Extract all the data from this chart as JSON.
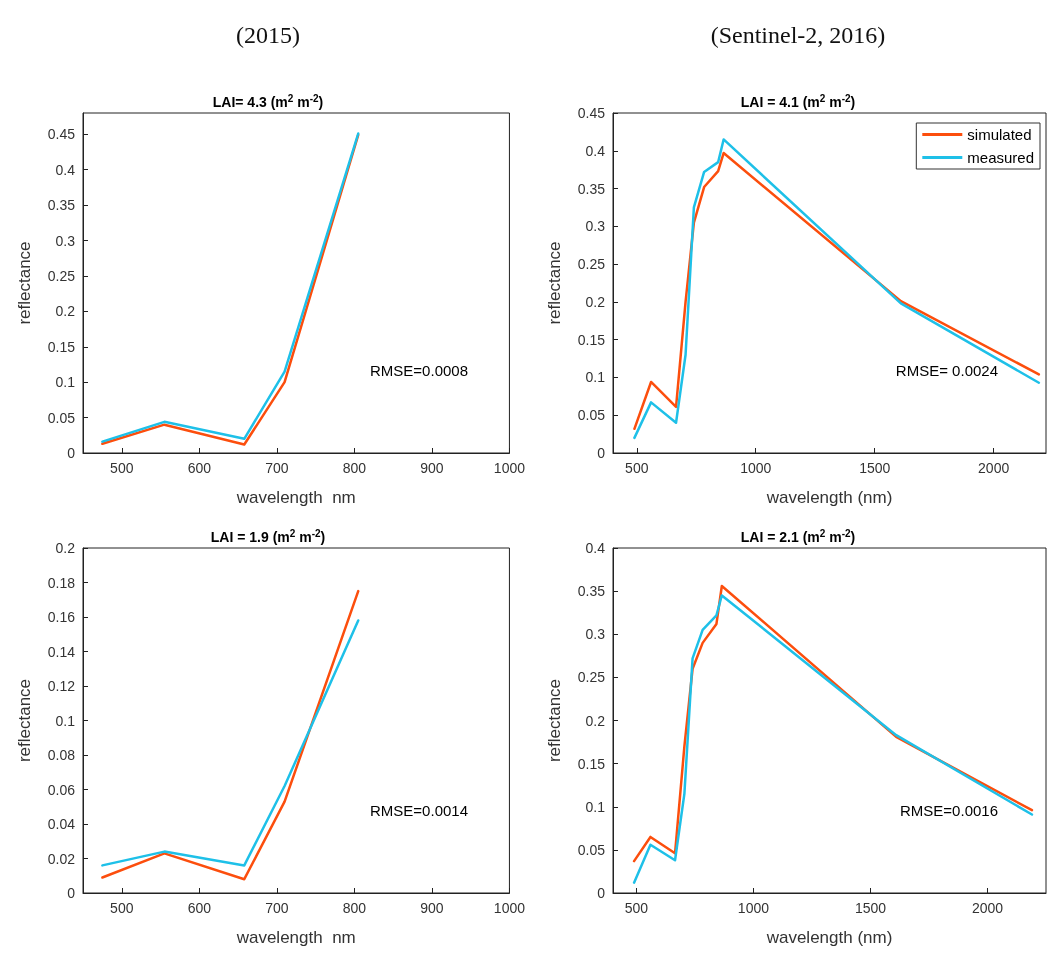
{
  "chart_data": [
    {
      "type": "line",
      "subtitle": "(2015)",
      "title": "LAI= 4.3 (m$^{2}$ m$^{-2}$)",
      "xlabel": "wavelength  nm",
      "ylabel": "reflectance",
      "x": [
        475,
        555,
        658,
        710,
        805
      ],
      "xlim": [
        450,
        1000
      ],
      "xticks": [
        500,
        600,
        700,
        800,
        900,
        1000
      ],
      "ylim": [
        0,
        0.48
      ],
      "yticks": [
        0,
        0.05,
        0.1,
        0.15,
        0.2,
        0.25,
        0.3,
        0.35,
        0.4,
        0.45
      ],
      "grid": false,
      "legend": false,
      "line_style": "solid",
      "annotations": [
        "RMSE=0.0008"
      ],
      "series": [
        {
          "color": "#fc4e0d",
          "values": [
            0.013,
            0.04,
            0.012,
            0.1,
            0.449
          ]
        },
        {
          "color": "#1ec0e8",
          "values": [
            0.016,
            0.044,
            0.02,
            0.115,
            0.451
          ]
        }
      ]
    },
    {
      "type": "line",
      "subtitle": "(Sentinel-2, 2016)",
      "title": "LAI = 4.1 (m$^{2}$ m$^{-2}$)",
      "xlabel": "wavelength (nm)",
      "ylabel": "reflectance",
      "x": [
        490,
        560,
        665,
        705,
        740,
        783,
        842,
        865,
        1610,
        2190
      ],
      "xlim": [
        400,
        2220
      ],
      "xticks": [
        500,
        1000,
        1500,
        2000
      ],
      "ylim": [
        0,
        0.45
      ],
      "yticks": [
        0,
        0.05,
        0.1,
        0.15,
        0.2,
        0.25,
        0.3,
        0.35,
        0.4,
        0.45
      ],
      "grid": false,
      "legend": "top right",
      "line_style": "solid",
      "annotations": [
        "RMSE= 0.0024"
      ],
      "series": [
        {
          "name": "simulated",
          "color": "#fc4e0d",
          "values": [
            0.032,
            0.094,
            0.061,
            0.2,
            0.305,
            0.352,
            0.373,
            0.397,
            0.201,
            0.104
          ]
        },
        {
          "name": "measured",
          "color": "#1ec0e8",
          "values": [
            0.02,
            0.067,
            0.04,
            0.13,
            0.325,
            0.372,
            0.385,
            0.415,
            0.198,
            0.093
          ]
        }
      ]
    },
    {
      "type": "line",
      "title": "LAI = 1.9 (m$^{2}$ m$^{-2}$)",
      "xlabel": "wavelength  nm",
      "ylabel": "reflectance",
      "x": [
        475,
        555,
        658,
        710,
        805
      ],
      "xlim": [
        450,
        1000
      ],
      "xticks": [
        500,
        600,
        700,
        800,
        900,
        1000
      ],
      "ylim": [
        0,
        0.2
      ],
      "yticks": [
        0,
        0.02,
        0.04,
        0.06,
        0.08,
        0.1,
        0.12,
        0.14,
        0.16,
        0.18,
        0.2
      ],
      "grid": false,
      "legend": false,
      "line_style": "solid",
      "annotations": [
        "RMSE=0.0014"
      ],
      "series": [
        {
          "color": "#fc4e0d",
          "values": [
            0.009,
            0.023,
            0.008,
            0.053,
            0.175
          ]
        },
        {
          "color": "#1ec0e8",
          "values": [
            0.016,
            0.024,
            0.016,
            0.062,
            0.158
          ]
        }
      ]
    },
    {
      "type": "line",
      "title": "LAI = 2.1 (m$^{2}$ m$^{-2}$)",
      "xlabel": "wavelength (nm)",
      "ylabel": "reflectance",
      "x": [
        490,
        560,
        665,
        705,
        740,
        783,
        842,
        865,
        1610,
        2190
      ],
      "xlim": [
        400,
        2250
      ],
      "xticks": [
        500,
        1000,
        1500,
        2000
      ],
      "ylim": [
        0,
        0.4
      ],
      "yticks": [
        0,
        0.05,
        0.1,
        0.15,
        0.2,
        0.25,
        0.3,
        0.35,
        0.4
      ],
      "grid": false,
      "legend": false,
      "line_style": "solid",
      "annotations": [
        "RMSE=0.0016"
      ],
      "series": [
        {
          "color": "#fc4e0d",
          "values": [
            0.037,
            0.065,
            0.046,
            0.17,
            0.26,
            0.29,
            0.312,
            0.356,
            0.181,
            0.096
          ]
        },
        {
          "color": "#1ec0e8",
          "values": [
            0.012,
            0.056,
            0.038,
            0.115,
            0.272,
            0.305,
            0.322,
            0.345,
            0.183,
            0.091
          ]
        }
      ]
    }
  ]
}
